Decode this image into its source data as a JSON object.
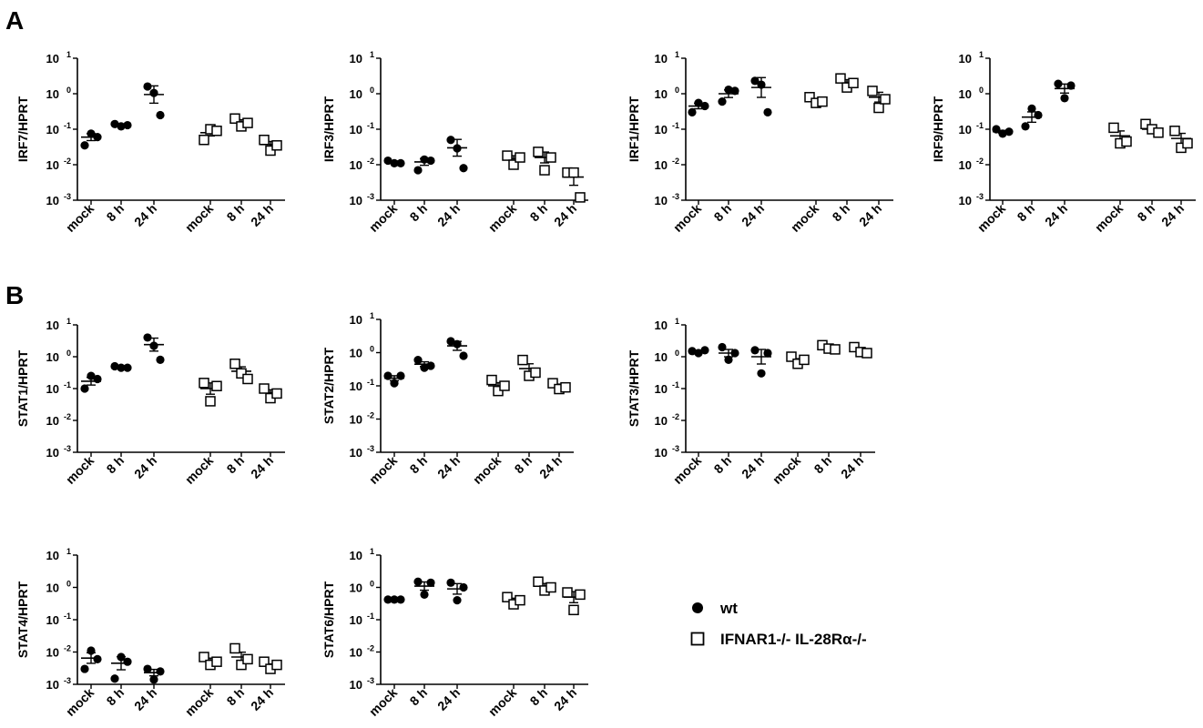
{
  "panels": [
    {
      "label": "A",
      "panel_label_pos": "top-left"
    },
    {
      "label": "B",
      "panel_label_pos": "top-left"
    }
  ],
  "legend": {
    "placement": "bottom-right",
    "entries": [
      {
        "label": "wt",
        "marker": "filled-circle"
      },
      {
        "label": "IFNAR1-/- IL-28Rα-/-",
        "marker": "open-square"
      }
    ]
  },
  "chart_data": [
    {
      "type": "scatter",
      "panel": "A",
      "ylabel": "IRF7/HPRT",
      "yscale": "log",
      "ylim": [
        0.001,
        10
      ],
      "yticks": [
        "10^-3",
        "10^-2",
        "10^-1",
        "10^0",
        "10^1"
      ],
      "categories": [
        "mock",
        "8 h",
        "24 h",
        "mock",
        "8 h",
        "24 h"
      ],
      "groups": [
        {
          "name": "wt",
          "marker": "filled-circle",
          "points": [
            [
              0.035,
              0.075,
              0.06
            ],
            [
              0.14,
              0.12,
              0.13
            ],
            [
              1.6,
              1.05,
              0.25
            ]
          ],
          "mean": [
            0.06,
            0.13,
            0.95
          ]
        },
        {
          "name": "IFNAR1-/- IL-28Rα-/-",
          "marker": "open-square",
          "points": [
            [
              0.05,
              0.1,
              0.09
            ],
            [
              0.2,
              0.12,
              0.15
            ],
            [
              0.05,
              0.025,
              0.035
            ]
          ],
          "mean": [
            0.08,
            0.16,
            0.037
          ]
        }
      ]
    },
    {
      "type": "scatter",
      "panel": "A",
      "ylabel": "IRF3/HPRT",
      "yscale": "log",
      "ylim": [
        0.001,
        10
      ],
      "yticks": [
        "10^-3",
        "10^-2",
        "10^-1",
        "10^0",
        "10^1"
      ],
      "categories": [
        "mock",
        "8 h",
        "24 h",
        "mock",
        "8 h",
        "24 h"
      ],
      "groups": [
        {
          "name": "wt",
          "marker": "filled-circle",
          "points": [
            [
              0.013,
              0.011,
              0.011
            ],
            [
              0.007,
              0.014,
              0.013
            ],
            [
              0.05,
              0.029,
              0.008
            ]
          ],
          "mean": [
            0.012,
            0.012,
            0.03
          ]
        },
        {
          "name": "IFNAR1-/- IL-28Rα-/-",
          "marker": "open-square",
          "points": [
            [
              0.018,
              0.01,
              0.016
            ],
            [
              0.023,
              0.007,
              0.016
            ],
            [
              0.006,
              0.006,
              0.0012
            ]
          ],
          "mean": [
            0.015,
            0.016,
            0.0045
          ]
        }
      ]
    },
    {
      "type": "scatter",
      "panel": "A",
      "ylabel": "IRF1/HPRT",
      "yscale": "log",
      "ylim": [
        0.001,
        10
      ],
      "yticks": [
        "10^-3",
        "10^-2",
        "10^-1",
        "10^0",
        "10^1"
      ],
      "categories": [
        "mock",
        "8 h",
        "24 h",
        "mock",
        "8 h",
        "24 h"
      ],
      "groups": [
        {
          "name": "wt",
          "marker": "filled-circle",
          "points": [
            [
              0.3,
              0.55,
              0.45
            ],
            [
              0.6,
              1.3,
              1.2
            ],
            [
              2.3,
              1.8,
              0.3
            ]
          ],
          "mean": [
            0.45,
            1.0,
            1.5
          ]
        },
        {
          "name": "IFNAR1-/- IL-28Rα-/-",
          "marker": "open-square",
          "points": [
            [
              0.8,
              0.55,
              0.6
            ],
            [
              2.7,
              1.5,
              2.0
            ],
            [
              1.2,
              0.4,
              0.7
            ]
          ],
          "mean": [
            0.65,
            2.1,
            0.8
          ]
        }
      ]
    },
    {
      "type": "scatter",
      "panel": "A",
      "ylabel": "IRF9/HPRT",
      "yscale": "log",
      "ylim": [
        0.001,
        10
      ],
      "yticks": [
        "10^-3",
        "10^-2",
        "10^-1",
        "10^0",
        "10^1"
      ],
      "categories": [
        "mock",
        "8 h",
        "24 h",
        "mock",
        "8 h",
        "24 h"
      ],
      "groups": [
        {
          "name": "wt",
          "marker": "filled-circle",
          "points": [
            [
              0.1,
              0.075,
              0.085
            ],
            [
              0.12,
              0.38,
              0.25
            ],
            [
              1.9,
              0.75,
              1.7
            ]
          ],
          "mean": [
            0.085,
            0.22,
            1.4
          ]
        },
        {
          "name": "IFNAR1-/- IL-28Rα-/-",
          "marker": "open-square",
          "points": [
            [
              0.11,
              0.04,
              0.045
            ],
            [
              0.14,
              0.1,
              0.08
            ],
            [
              0.09,
              0.03,
              0.04
            ]
          ],
          "mean": [
            0.065,
            0.1,
            0.055
          ]
        }
      ]
    },
    {
      "type": "scatter",
      "panel": "B",
      "ylabel": "STAT1/HPRT",
      "yscale": "log",
      "ylim": [
        0.001,
        10
      ],
      "yticks": [
        "10^-3",
        "10^-2",
        "10^-1",
        "10^0",
        "10^1"
      ],
      "categories": [
        "mock",
        "8 h",
        "24 h",
        "mock",
        "8 h",
        "24 h"
      ],
      "groups": [
        {
          "name": "wt",
          "marker": "filled-circle",
          "points": [
            [
              0.1,
              0.25,
              0.2
            ],
            [
              0.5,
              0.45,
              0.45
            ],
            [
              4.0,
              2.2,
              0.8
            ]
          ],
          "mean": [
            0.17,
            0.47,
            2.4
          ]
        },
        {
          "name": "IFNAR1-/- IL-28Rα-/-",
          "marker": "open-square",
          "points": [
            [
              0.15,
              0.04,
              0.12
            ],
            [
              0.6,
              0.3,
              0.2
            ],
            [
              0.1,
              0.05,
              0.07
            ]
          ],
          "mean": [
            0.1,
            0.35,
            0.075
          ]
        }
      ]
    },
    {
      "type": "scatter",
      "panel": "B",
      "ylabel": "STAT2/HPRT",
      "yscale": "log",
      "ylim": [
        0.001,
        10
      ],
      "yticks": [
        "10^-3",
        "10^-2",
        "10^-1",
        "10^0",
        "10^1"
      ],
      "categories": [
        "mock",
        "8 h",
        "24 h",
        "mock",
        "8 h",
        "24 h"
      ],
      "groups": [
        {
          "name": "wt",
          "marker": "filled-circle",
          "points": [
            [
              0.2,
              0.12,
              0.2
            ],
            [
              0.6,
              0.35,
              0.4
            ],
            [
              2.2,
              1.8,
              0.8
            ]
          ],
          "mean": [
            0.17,
            0.45,
            1.6
          ]
        },
        {
          "name": "IFNAR1-/- IL-28Rα-/-",
          "marker": "open-square",
          "points": [
            [
              0.15,
              0.07,
              0.1
            ],
            [
              0.6,
              0.2,
              0.25
            ],
            [
              0.12,
              0.08,
              0.09
            ]
          ],
          "mean": [
            0.1,
            0.33,
            0.1
          ]
        }
      ]
    },
    {
      "type": "scatter",
      "panel": "B",
      "ylabel": "STAT3/HPRT",
      "yscale": "log",
      "ylim": [
        0.001,
        10
      ],
      "yticks": [
        "10^-3",
        "10^-2",
        "10^-1",
        "10^0",
        "10^1"
      ],
      "categories": [
        "mock",
        "8 h",
        "24 h",
        "mock",
        "8 h",
        "24 h"
      ],
      "groups": [
        {
          "name": "wt",
          "marker": "filled-circle",
          "points": [
            [
              1.5,
              1.3,
              1.6
            ],
            [
              2.0,
              0.8,
              1.3
            ],
            [
              1.6,
              0.3,
              1.3
            ]
          ],
          "mean": [
            1.5,
            1.3,
            1.0
          ]
        },
        {
          "name": "IFNAR1-/- IL-28Rα-/-",
          "marker": "open-square",
          "points": [
            [
              1.0,
              0.6,
              0.8
            ],
            [
              2.3,
              1.8,
              1.7
            ],
            [
              2.0,
              1.4,
              1.3
            ]
          ],
          "mean": [
            0.75,
            1.9,
            1.5
          ]
        }
      ]
    },
    {
      "type": "scatter",
      "panel": "B",
      "ylabel": "STAT4/HPRT",
      "yscale": "log",
      "ylim": [
        0.001,
        10
      ],
      "yticks": [
        "10^-3",
        "10^-2",
        "10^-1",
        "10^0",
        "10^1"
      ],
      "categories": [
        "mock",
        "8 h",
        "24 h",
        "mock",
        "8 h",
        "24 h"
      ],
      "groups": [
        {
          "name": "wt",
          "marker": "filled-circle",
          "points": [
            [
              0.003,
              0.011,
              0.006
            ],
            [
              0.0015,
              0.007,
              0.005
            ],
            [
              0.003,
              0.0014,
              0.0025
            ]
          ],
          "mean": [
            0.0065,
            0.0045,
            0.0023
          ]
        },
        {
          "name": "IFNAR1-/- IL-28Rα-/-",
          "marker": "open-square",
          "points": [
            [
              0.007,
              0.004,
              0.005
            ],
            [
              0.013,
              0.004,
              0.006
            ],
            [
              0.005,
              0.003,
              0.004
            ]
          ],
          "mean": [
            0.0055,
            0.007,
            0.0037
          ]
        }
      ]
    },
    {
      "type": "scatter",
      "panel": "B",
      "ylabel": "STAT6/HPRT",
      "yscale": "log",
      "ylim": [
        0.001,
        10
      ],
      "yticks": [
        "10^-3",
        "10^-2",
        "10^-1",
        "10^0",
        "10^1"
      ],
      "categories": [
        "mock",
        "8 h",
        "24 h",
        "mock",
        "8 h",
        "24 h"
      ],
      "groups": [
        {
          "name": "wt",
          "marker": "filled-circle",
          "points": [
            [
              0.42,
              0.42,
              0.42
            ],
            [
              1.5,
              0.6,
              1.4
            ],
            [
              1.4,
              0.4,
              1.0
            ]
          ],
          "mean": [
            0.42,
            1.1,
            0.9
          ]
        },
        {
          "name": "IFNAR1-/- IL-28Rα-/-",
          "marker": "open-square",
          "points": [
            [
              0.5,
              0.3,
              0.4
            ],
            [
              1.5,
              0.8,
              1.0
            ],
            [
              0.7,
              0.2,
              0.6
            ]
          ],
          "mean": [
            0.4,
            1.1,
            0.5
          ]
        }
      ]
    }
  ]
}
